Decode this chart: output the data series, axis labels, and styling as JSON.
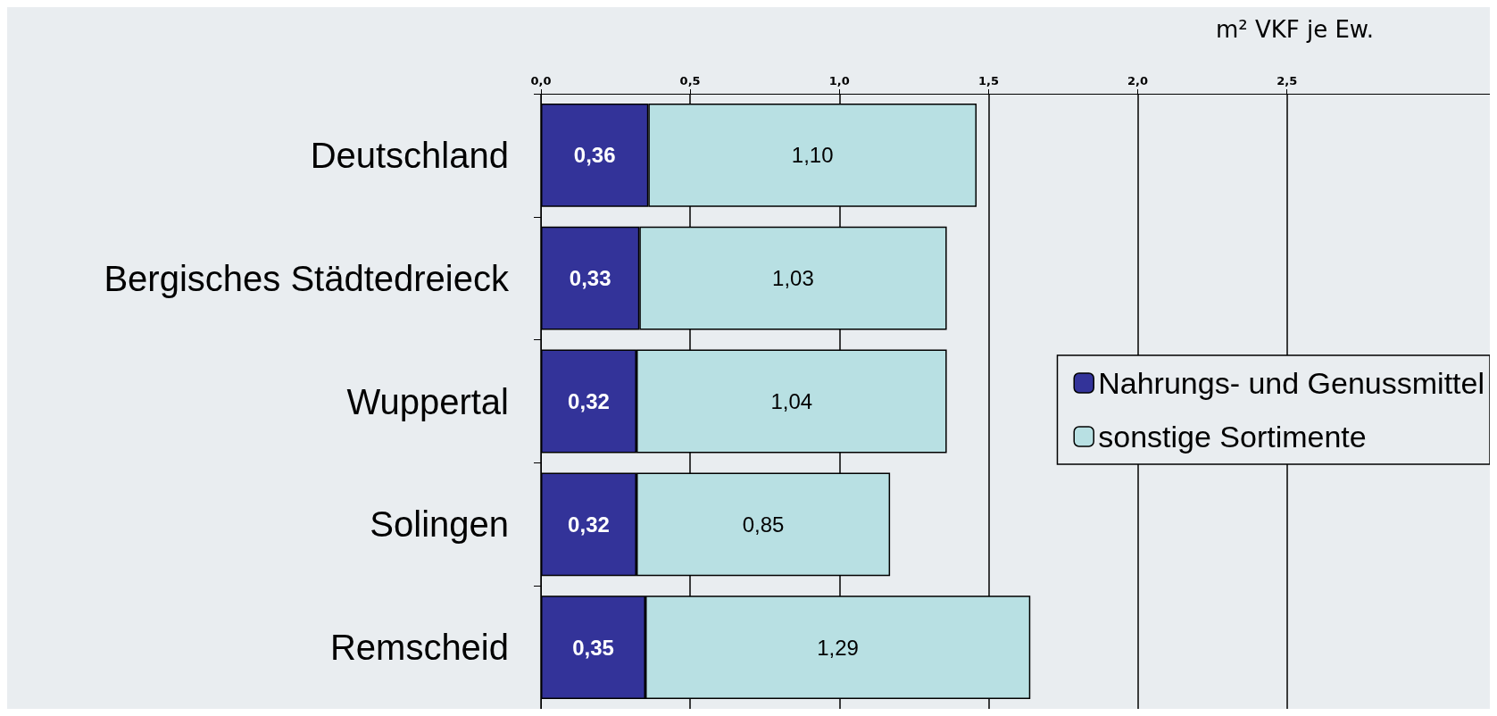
{
  "chart_data": {
    "type": "bar",
    "orientation": "horizontal",
    "stacked": true,
    "xlabel": "m² VKF je Ew.",
    "categories": [
      "Deutschland",
      "Bergisches Städtedreieck",
      "Wuppertal",
      "Solingen",
      "Remscheid"
    ],
    "series": [
      {
        "name": "Nahrungs- und Genussmittel",
        "color": "#333399",
        "values": [
          0.36,
          0.33,
          0.32,
          0.32,
          0.35
        ],
        "value_labels": [
          "0,36",
          "0,33",
          "0,32",
          "0,32",
          "0,35"
        ]
      },
      {
        "name": "sonstige Sortimente",
        "color": "#b8e0e3",
        "values": [
          1.1,
          1.03,
          1.04,
          0.85,
          1.29
        ],
        "value_labels": [
          "1,10",
          "1,03",
          "1,04",
          "0,85",
          "1,29"
        ]
      }
    ],
    "xlim": [
      0,
      3.18
    ],
    "xticks": [
      {
        "value": 0,
        "label": "0,0"
      },
      {
        "value": 0.5,
        "label": "0,5"
      },
      {
        "value": 1,
        "label": "1,0"
      },
      {
        "value": 1.5,
        "label": "1,5"
      },
      {
        "value": 2,
        "label": "2,0"
      },
      {
        "value": 2.5,
        "label": "2,5"
      }
    ],
    "grid": "x",
    "legend": "right"
  }
}
